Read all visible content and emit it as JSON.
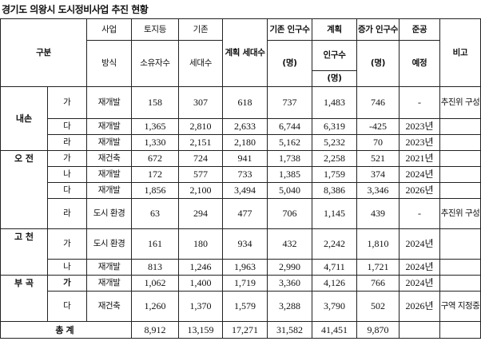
{
  "title": "경기도 의왕시 도시정비사업 추진 현황",
  "header": {
    "group": "구분",
    "type_top": "사업",
    "type_bottom": "방식",
    "owners_top": "토지등",
    "owners_bottom": "소유자수",
    "exist_units_top": "기존",
    "exist_units_bottom": "세대수",
    "plan_units": "계획 세대수",
    "exist_pop_top": "기존 인구수",
    "exist_pop_bottom": "(명)",
    "plan_pop_top": "계획",
    "plan_pop_mid": "인구수",
    "plan_pop_bottom": "(명)",
    "inc_pop_top": "증가 인구수",
    "inc_pop_bottom": "(명)",
    "done_top": "준공",
    "done_bottom": "예정",
    "note": "비고"
  },
  "groups": {
    "naeson": "내손",
    "ojeon": "오 전",
    "gocheon": "고 천",
    "bugok": "부 곡"
  },
  "rows": [
    {
      "sub": "가",
      "type": "재개발",
      "owners": "158",
      "exist_units": "307",
      "plan_units": "618",
      "exist_pop": "737",
      "plan_pop": "1,483",
      "inc_pop": "746",
      "done": "-",
      "note": "추진위 구성"
    },
    {
      "sub": "다",
      "type": "재개발",
      "owners": "1,365",
      "exist_units": "2,810",
      "plan_units": "2,633",
      "exist_pop": "6,744",
      "plan_pop": "6,319",
      "inc_pop": "-425",
      "done": "2023년",
      "note": ""
    },
    {
      "sub": "라",
      "type": "재개발",
      "owners": "1,330",
      "exist_units": "2,151",
      "plan_units": "2,180",
      "exist_pop": "5,162",
      "plan_pop": "5,232",
      "inc_pop": "70",
      "done": "2023년",
      "note": ""
    },
    {
      "sub": "가",
      "type": "재건축",
      "owners": "672",
      "exist_units": "724",
      "plan_units": "941",
      "exist_pop": "1,738",
      "plan_pop": "2,258",
      "inc_pop": "521",
      "done": "2021년",
      "note": ""
    },
    {
      "sub": "나",
      "type": "재개발",
      "owners": "172",
      "exist_units": "577",
      "plan_units": "733",
      "exist_pop": "1,385",
      "plan_pop": "1,759",
      "inc_pop": "374",
      "done": "2024년",
      "note": ""
    },
    {
      "sub": "다",
      "type": "재개발",
      "owners": "1,856",
      "exist_units": "2,100",
      "plan_units": "3,494",
      "exist_pop": "5,040",
      "plan_pop": "8,386",
      "inc_pop": "3,346",
      "done": "2026년",
      "note": ""
    },
    {
      "sub": "라",
      "type": "도시 환경",
      "owners": "63",
      "exist_units": "294",
      "plan_units": "477",
      "exist_pop": "706",
      "plan_pop": "1,145",
      "inc_pop": "439",
      "done": "-",
      "note": "추진위 구성"
    },
    {
      "sub": "가",
      "type": "도시 환경",
      "owners": "161",
      "exist_units": "180",
      "plan_units": "934",
      "exist_pop": "432",
      "plan_pop": "2,242",
      "inc_pop": "1,810",
      "done": "2024년",
      "note": ""
    },
    {
      "sub": "나",
      "type": "재개발",
      "owners": "813",
      "exist_units": "1,246",
      "plan_units": "1,963",
      "exist_pop": "2,990",
      "plan_pop": "4,711",
      "inc_pop": "1,721",
      "done": "2024년",
      "note": ""
    },
    {
      "sub": "가",
      "type": "재개발",
      "owners": "1,062",
      "exist_units": "1,400",
      "plan_units": "1,719",
      "exist_pop": "3,360",
      "plan_pop": "4,126",
      "inc_pop": "766",
      "done": "2024년",
      "note": ""
    },
    {
      "sub": "다",
      "type": "재건축",
      "owners": "1,260",
      "exist_units": "1,370",
      "plan_units": "1,579",
      "exist_pop": "3,288",
      "plan_pop": "3,790",
      "inc_pop": "502",
      "done": "2026년",
      "note": "구역 지정중"
    }
  ],
  "total": {
    "label": "총계",
    "owners": "8,912",
    "exist_units": "13,159",
    "plan_units": "17,271",
    "exist_pop": "31,582",
    "plan_pop": "41,451",
    "inc_pop": "9,870",
    "done": "",
    "note": ""
  }
}
